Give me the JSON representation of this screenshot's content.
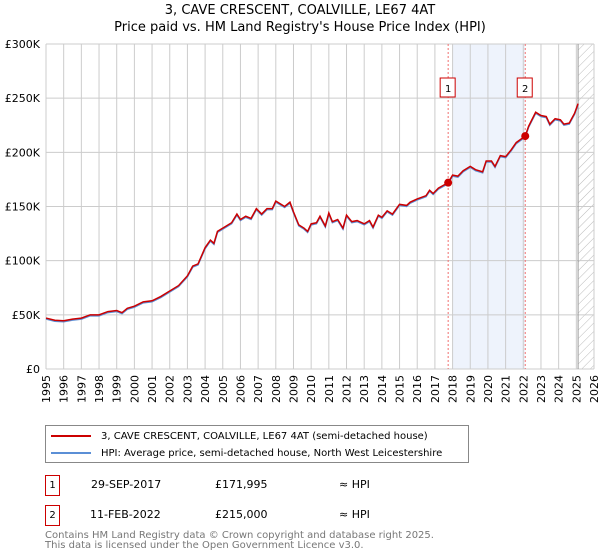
{
  "title": "3, CAVE CRESCENT, COALVILLE, LE67 4AT",
  "subtitle": "Price paid vs. HM Land Registry's House Price Index (HPI)",
  "chart_data": {
    "type": "line",
    "ylim": [
      0,
      300000
    ],
    "xlim": [
      1995,
      2026
    ],
    "yticks": [
      {
        "v": 0,
        "label": "£0"
      },
      {
        "v": 50000,
        "label": "£50K"
      },
      {
        "v": 100000,
        "label": "£100K"
      },
      {
        "v": 150000,
        "label": "£150K"
      },
      {
        "v": 200000,
        "label": "£200K"
      },
      {
        "v": 250000,
        "label": "£250K"
      },
      {
        "v": 300000,
        "label": "£300K"
      }
    ],
    "xticks": [
      "1995",
      "1996",
      "1997",
      "1998",
      "1999",
      "2000",
      "2001",
      "2002",
      "2003",
      "2004",
      "2005",
      "2006",
      "2007",
      "2008",
      "2009",
      "2010",
      "2011",
      "2012",
      "2013",
      "2014",
      "2015",
      "2016",
      "2017",
      "2018",
      "2019",
      "2020",
      "2021",
      "2022",
      "2023",
      "2024",
      "2025",
      "2026"
    ],
    "shaded_range": [
      2018.0,
      2022.11
    ],
    "forecast_from": 2025.1,
    "series": [
      {
        "name": "3, CAVE CRESCENT, COALVILLE, LE67 4AT (semi-detached house)",
        "color": "#cc0000",
        "x": [
          1995,
          1995.5,
          1996,
          1996.5,
          1997,
          1997.5,
          1998,
          1998.5,
          1999,
          1999.3,
          1999.6,
          2000,
          2000.5,
          2001,
          2001.5,
          2002,
          2002.5,
          2003,
          2003.3,
          2003.6,
          2004,
          2004.3,
          2004.5,
          2004.7,
          2005,
          2005.5,
          2005.8,
          2006,
          2006.3,
          2006.6,
          2006.9,
          2007.2,
          2007.5,
          2007.8,
          2008,
          2008.5,
          2008.8,
          2009,
          2009.3,
          2009.6,
          2009.8,
          2010,
          2010.3,
          2010.5,
          2010.8,
          2011,
          2011.2,
          2011.5,
          2011.8,
          2012,
          2012.3,
          2012.6,
          2013,
          2013.3,
          2013.5,
          2013.8,
          2014,
          2014.3,
          2014.6,
          2015,
          2015.4,
          2015.6,
          2016,
          2016.5,
          2016.7,
          2016.9,
          2017.2,
          2017.75,
          2018,
          2018.3,
          2018.6,
          2019,
          2019.3,
          2019.7,
          2019.9,
          2020.2,
          2020.4,
          2020.7,
          2021,
          2021.3,
          2021.6,
          2022.11,
          2022.3,
          2022.7,
          2023,
          2023.3,
          2023.5,
          2023.8,
          2024.1,
          2024.3,
          2024.6,
          2024.9,
          2025.1
        ],
        "y": [
          47000,
          45000,
          44500,
          46000,
          47000,
          50000,
          50000,
          53000,
          54000,
          52000,
          56000,
          58000,
          62000,
          63000,
          67000,
          72000,
          77000,
          86000,
          95000,
          97000,
          112000,
          119000,
          116000,
          127000,
          130000,
          135000,
          143000,
          138000,
          141000,
          139000,
          148000,
          143000,
          148000,
          148000,
          155000,
          150000,
          154000,
          145000,
          133000,
          130000,
          127000,
          134000,
          135000,
          141000,
          132000,
          144000,
          136000,
          138000,
          130000,
          142000,
          136000,
          137000,
          134000,
          137000,
          131000,
          142000,
          140000,
          146000,
          143000,
          152000,
          151000,
          154000,
          157000,
          160000,
          165000,
          162000,
          167000,
          171995,
          179000,
          178000,
          183000,
          187000,
          184000,
          182000,
          192000,
          192000,
          187000,
          197000,
          196000,
          202000,
          209000,
          215000,
          224000,
          237000,
          234000,
          233000,
          226000,
          231000,
          230000,
          226000,
          227000,
          236000,
          245000
        ]
      },
      {
        "name": "HPI: Average price, semi-detached house, North West Leicestershire",
        "color": "#5b8fd6"
      }
    ],
    "sales": [
      {
        "id": "1",
        "x": 2017.75,
        "y": 171995
      },
      {
        "id": "2",
        "x": 2022.11,
        "y": 215000
      }
    ]
  },
  "legend": {
    "item1": "3, CAVE CRESCENT, COALVILLE, LE67 4AT (semi-detached house)",
    "item2": "HPI: Average price, semi-detached house, North West Leicestershire"
  },
  "transactions": [
    {
      "id": "1",
      "date": "29-SEP-2017",
      "price": "£171,995",
      "hpi": "≈ HPI"
    },
    {
      "id": "2",
      "date": "11-FEB-2022",
      "price": "£215,000",
      "hpi": "≈ HPI"
    }
  ],
  "footer": {
    "line1": "Contains HM Land Registry data © Crown copyright and database right 2025.",
    "line2": "This data is licensed under the Open Government Licence v3.0."
  }
}
